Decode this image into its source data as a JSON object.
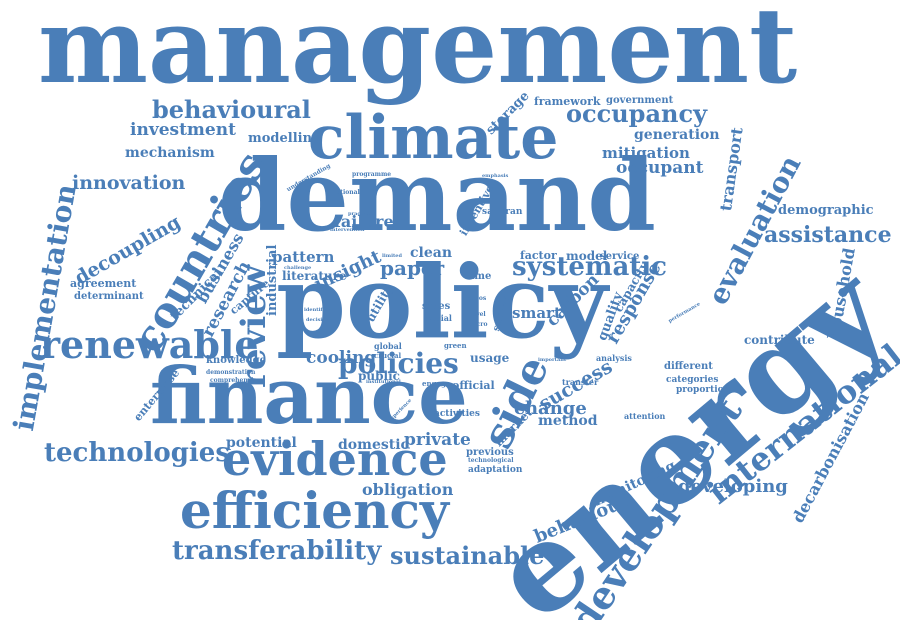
{
  "color": "#4a7eb8",
  "words": [
    {
      "text": "management"
    },
    {
      "text": "demand"
    },
    {
      "text": "policy"
    },
    {
      "text": "energy"
    },
    {
      "text": "finance"
    },
    {
      "text": "climate"
    },
    {
      "text": "evidence"
    },
    {
      "text": "efficiency"
    },
    {
      "text": "renewable"
    },
    {
      "text": "countries"
    },
    {
      "text": "development"
    },
    {
      "text": "international"
    },
    {
      "text": "implementation"
    },
    {
      "text": "technologies"
    },
    {
      "text": "transferability"
    },
    {
      "text": "sustainable"
    },
    {
      "text": "behavioural"
    },
    {
      "text": "occupancy"
    },
    {
      "text": "investment"
    },
    {
      "text": "mechanism"
    },
    {
      "text": "innovation"
    },
    {
      "text": "decoupling"
    },
    {
      "text": "review"
    },
    {
      "text": "systematic"
    },
    {
      "text": "policies"
    },
    {
      "text": "evaluation"
    },
    {
      "text": "assistance"
    },
    {
      "text": "demographic"
    },
    {
      "text": "household"
    },
    {
      "text": "decarbonisation"
    },
    {
      "text": "developing"
    },
    {
      "text": "side"
    },
    {
      "text": "success"
    },
    {
      "text": "change"
    },
    {
      "text": "behaviour"
    },
    {
      "text": "monitoring"
    },
    {
      "text": "cooling"
    },
    {
      "text": "insight"
    },
    {
      "text": "pattern"
    },
    {
      "text": "research"
    },
    {
      "text": "business"
    },
    {
      "text": "technical"
    },
    {
      "text": "agreement"
    },
    {
      "text": "determinant"
    },
    {
      "text": "enterprise"
    },
    {
      "text": "industrial"
    },
    {
      "text": "obligation"
    },
    {
      "text": "domestic"
    },
    {
      "text": "private"
    },
    {
      "text": "potential"
    },
    {
      "text": "mitigation"
    },
    {
      "text": "generation"
    },
    {
      "text": "occupant"
    },
    {
      "text": "transport"
    },
    {
      "text": "framework"
    },
    {
      "text": "government"
    },
    {
      "text": "storage"
    },
    {
      "text": "modelling"
    },
    {
      "text": "failure"
    },
    {
      "text": "clean"
    },
    {
      "text": "paper"
    },
    {
      "text": "smart"
    },
    {
      "text": "carbon"
    },
    {
      "text": "response"
    },
    {
      "text": "quality"
    },
    {
      "text": "capacity"
    },
    {
      "text": "contribute"
    },
    {
      "text": "method"
    },
    {
      "text": "market"
    },
    {
      "text": "utility"
    },
    {
      "text": "public"
    },
    {
      "text": "official"
    },
    {
      "text": "usage"
    },
    {
      "text": "factor"
    },
    {
      "text": "model"
    },
    {
      "text": "service"
    },
    {
      "text": "literature"
    },
    {
      "text": "capture"
    },
    {
      "text": "knowledge"
    },
    {
      "text": "demonstration"
    },
    {
      "text": "comprehensive"
    },
    {
      "text": "activities"
    },
    {
      "text": "previous"
    },
    {
      "text": "adaptation"
    },
    {
      "text": "different"
    },
    {
      "text": "categories"
    },
    {
      "text": "proportion"
    },
    {
      "text": "analysis"
    },
    {
      "text": "attention"
    },
    {
      "text": "incentive"
    },
    {
      "text": "saharan"
    },
    {
      "text": "survey"
    },
    {
      "text": "smes"
    },
    {
      "text": "social"
    },
    {
      "text": "time"
    },
    {
      "text": "global"
    },
    {
      "text": "crucial"
    },
    {
      "text": "engage"
    },
    {
      "text": "transfer"
    },
    {
      "text": "technological"
    },
    {
      "text": "programme"
    },
    {
      "text": "understanding"
    },
    {
      "text": "national"
    },
    {
      "text": "practical"
    },
    {
      "text": "intervention"
    },
    {
      "text": "challenge"
    },
    {
      "text": "limited"
    },
    {
      "text": "green"
    },
    {
      "text": "level"
    },
    {
      "text": "micro"
    },
    {
      "text": "escos"
    },
    {
      "text": "experience"
    },
    {
      "text": "emphasis"
    },
    {
      "text": "performance"
    },
    {
      "text": "important"
    },
    {
      "text": "institutional"
    },
    {
      "text": "identifies"
    },
    {
      "text": "decision"
    }
  ]
}
